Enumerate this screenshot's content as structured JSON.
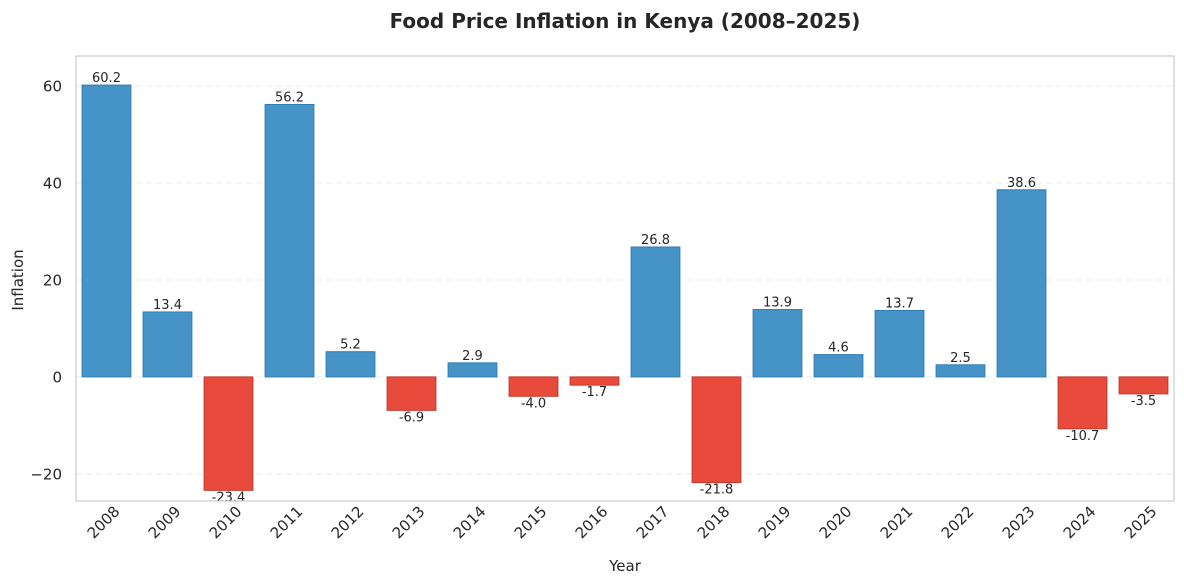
{
  "chart_data": {
    "type": "bar",
    "title": "Food Price Inflation in Kenya (2008–2025)",
    "xlabel": "Year",
    "ylabel": "Inflation",
    "categories": [
      "2008",
      "2009",
      "2010",
      "2011",
      "2012",
      "2013",
      "2014",
      "2015",
      "2016",
      "2017",
      "2018",
      "2019",
      "2020",
      "2021",
      "2022",
      "2023",
      "2024",
      "2025"
    ],
    "values": [
      60.2,
      13.4,
      -23.4,
      56.2,
      5.2,
      -6.9,
      2.9,
      -4.0,
      -1.7,
      26.8,
      -21.8,
      13.9,
      4.6,
      13.7,
      2.5,
      38.6,
      -10.7,
      -3.5
    ],
    "value_labels": [
      "60.2",
      "13.4",
      "-23.4",
      "56.2",
      "5.2",
      "-6.9",
      "2.9",
      "-4.0",
      "-1.7",
      "26.8",
      "-21.8",
      "13.9",
      "4.6",
      "13.7",
      "2.5",
      "38.6",
      "-10.7",
      "-3.5"
    ],
    "ylim": [
      -25.6,
      66.2
    ],
    "yticks": [
      60,
      40,
      20,
      0,
      -20
    ],
    "ytick_labels": [
      "60",
      "40",
      "20",
      "0",
      "−20"
    ],
    "grid": "y-dashed",
    "legend": "none",
    "colors": {
      "positive": "#4694c7",
      "positive_edge": "#2e7db5",
      "negative": "#e84b3c",
      "negative_edge": "#c0392b",
      "grid": "#ebebeb",
      "frame": "#cccccc",
      "text": "#262626"
    }
  }
}
